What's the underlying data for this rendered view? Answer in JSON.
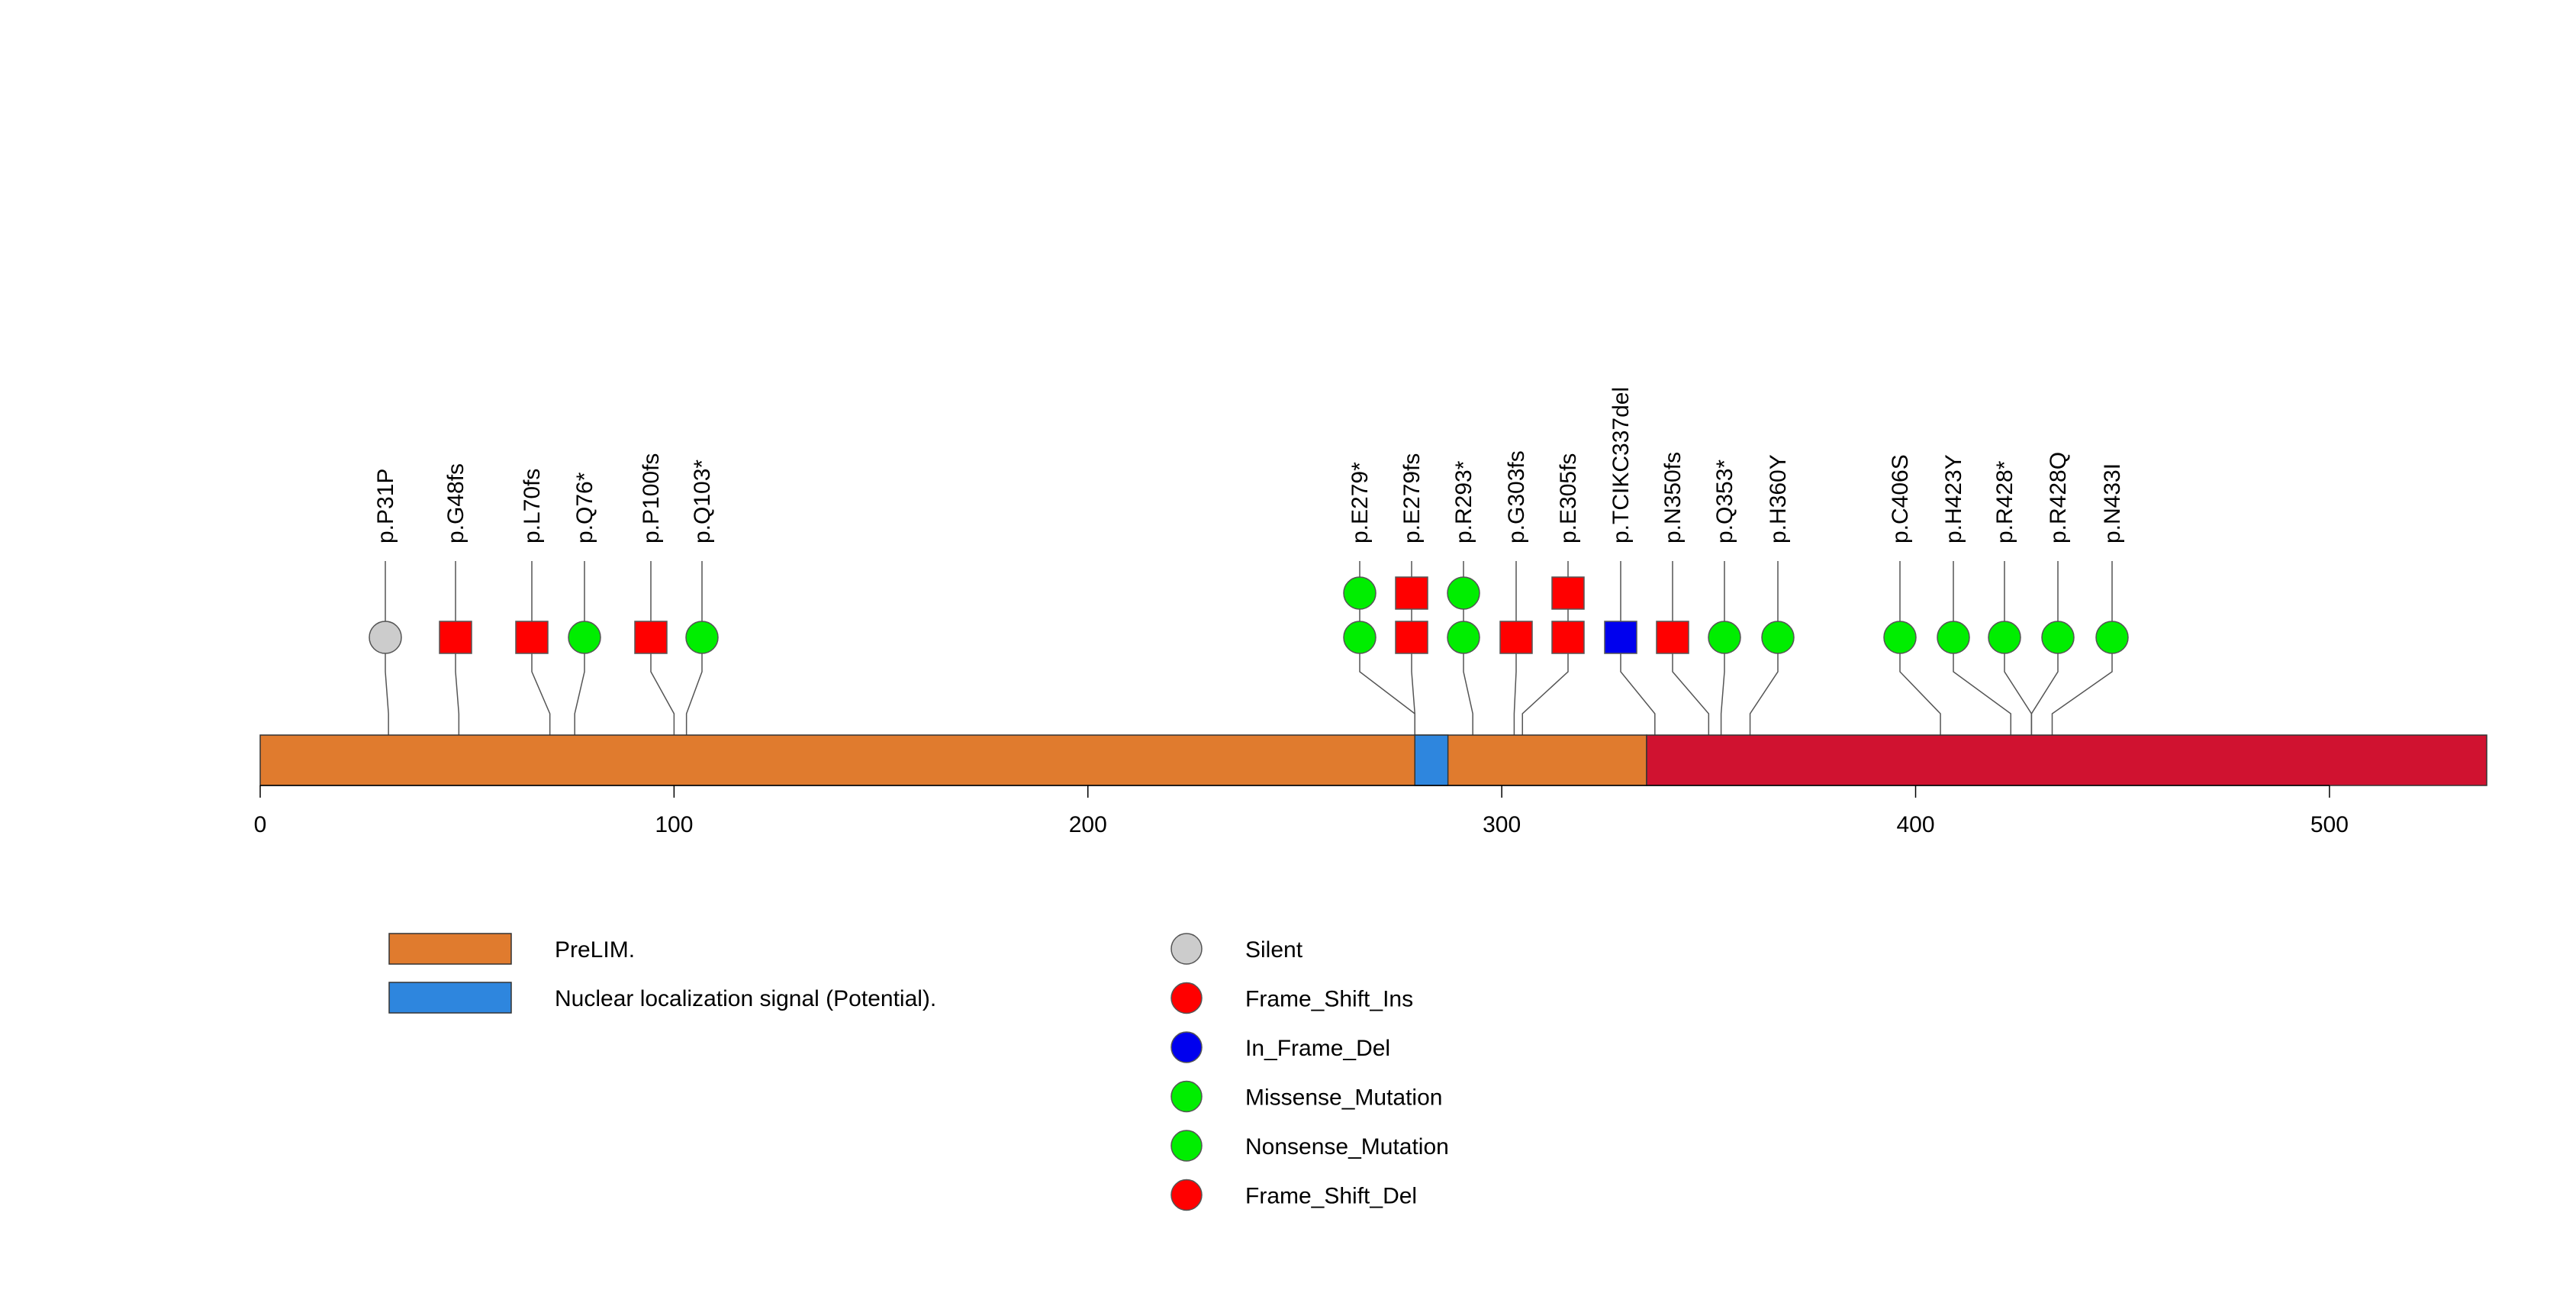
{
  "chart_data": {
    "type": "lollipop",
    "protein_length": 538,
    "x_ticks": [
      0,
      100,
      200,
      300,
      400,
      500
    ],
    "domains": [
      {
        "name": "PreLIM.",
        "start": 0,
        "end": 335,
        "color": "#E07B2E"
      },
      {
        "name": "Nuclear localization signal (Potential).",
        "start": 279,
        "end": 287,
        "color": "#2E86DE"
      },
      {
        "name": "",
        "start": 335,
        "end": 538,
        "color": "#D01230"
      }
    ],
    "legend_domains": [
      {
        "label": "PreLIM.",
        "color": "#E07B2E"
      },
      {
        "label": "Nuclear localization signal (Potential).",
        "color": "#2E86DE"
      }
    ],
    "legend_mutations": [
      {
        "label": "Silent",
        "color": "#CCCCCC"
      },
      {
        "label": "Frame_Shift_Ins",
        "color": "#FF0000"
      },
      {
        "label": "In_Frame_Del",
        "color": "#0000EE"
      },
      {
        "label": "Missense_Mutation",
        "color": "#00EE00"
      },
      {
        "label": "Nonsense_Mutation",
        "color": "#00EE00"
      },
      {
        "label": "Frame_Shift_Del",
        "color": "#FF0000"
      }
    ],
    "mutations": [
      {
        "label": "p.P31P",
        "pos": 31,
        "stacks": [
          {
            "shape": "circle",
            "color": "#CCCCCC"
          }
        ]
      },
      {
        "label": "p.G48fs",
        "pos": 48,
        "stacks": [
          {
            "shape": "square",
            "color": "#FF0000"
          }
        ]
      },
      {
        "label": "p.L70fs",
        "pos": 70,
        "stacks": [
          {
            "shape": "square",
            "color": "#FF0000"
          }
        ]
      },
      {
        "label": "p.Q76*",
        "pos": 76,
        "stacks": [
          {
            "shape": "circle",
            "color": "#00EE00"
          }
        ]
      },
      {
        "label": "p.P100fs",
        "pos": 100,
        "stacks": [
          {
            "shape": "square",
            "color": "#FF0000"
          }
        ]
      },
      {
        "label": "p.Q103*",
        "pos": 103,
        "stacks": [
          {
            "shape": "circle",
            "color": "#00EE00"
          }
        ]
      },
      {
        "label": "p.E279*",
        "pos": 279,
        "stacks": [
          {
            "shape": "circle",
            "color": "#00EE00"
          },
          {
            "shape": "circle",
            "color": "#00EE00"
          }
        ]
      },
      {
        "label": "p.E279fs",
        "pos": 279,
        "stacks": [
          {
            "shape": "square",
            "color": "#FF0000"
          },
          {
            "shape": "square",
            "color": "#FF0000"
          }
        ]
      },
      {
        "label": "p.R293*",
        "pos": 293,
        "stacks": [
          {
            "shape": "circle",
            "color": "#00EE00"
          },
          {
            "shape": "circle",
            "color": "#00EE00"
          }
        ]
      },
      {
        "label": "p.G303fs",
        "pos": 303,
        "stacks": [
          {
            "shape": "square",
            "color": "#FF0000"
          }
        ]
      },
      {
        "label": "p.E305fs",
        "pos": 305,
        "stacks": [
          {
            "shape": "square",
            "color": "#FF0000"
          },
          {
            "shape": "square",
            "color": "#FF0000"
          }
        ]
      },
      {
        "label": "p.TCIKC337del",
        "pos": 337,
        "stacks": [
          {
            "shape": "square",
            "color": "#0000EE"
          }
        ]
      },
      {
        "label": "p.N350fs",
        "pos": 350,
        "stacks": [
          {
            "shape": "square",
            "color": "#FF0000"
          }
        ]
      },
      {
        "label": "p.Q353*",
        "pos": 353,
        "stacks": [
          {
            "shape": "circle",
            "color": "#00EE00"
          }
        ]
      },
      {
        "label": "p.H360Y",
        "pos": 360,
        "stacks": [
          {
            "shape": "circle",
            "color": "#00EE00"
          }
        ]
      },
      {
        "label": "p.C406S",
        "pos": 406,
        "stacks": [
          {
            "shape": "circle",
            "color": "#00EE00"
          }
        ]
      },
      {
        "label": "p.H423Y",
        "pos": 423,
        "stacks": [
          {
            "shape": "circle",
            "color": "#00EE00"
          }
        ]
      },
      {
        "label": "p.R428*",
        "pos": 428,
        "stacks": [
          {
            "shape": "circle",
            "color": "#00EE00"
          }
        ]
      },
      {
        "label": "p.R428Q",
        "pos": 428,
        "stacks": [
          {
            "shape": "circle",
            "color": "#00EE00"
          }
        ]
      },
      {
        "label": "p.N433I",
        "pos": 433,
        "stacks": [
          {
            "shape": "circle",
            "color": "#00EE00"
          }
        ]
      }
    ]
  }
}
